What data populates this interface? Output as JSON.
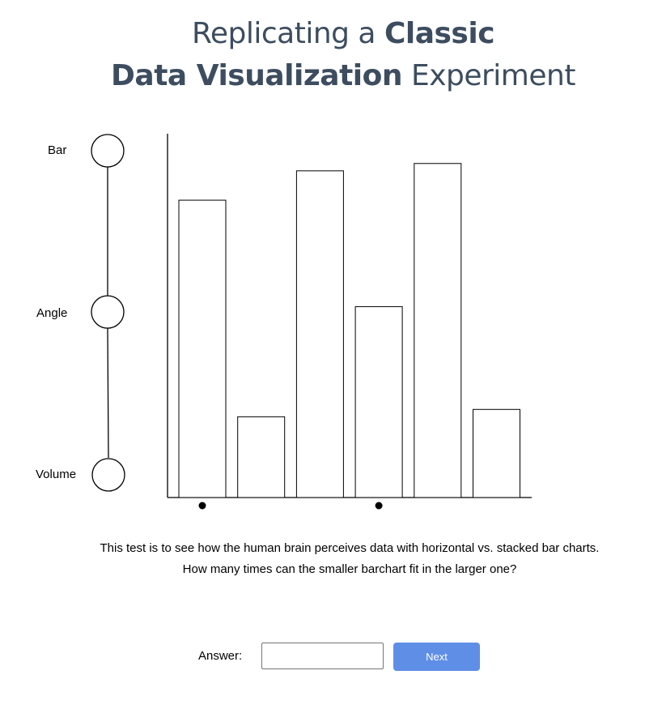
{
  "header": {
    "title_line1_normal": "Replicating a ",
    "title_line1_bold": "Classic",
    "title_line2_bold": "Data Visualization",
    "title_line2_normal": " Experiment"
  },
  "stepper": {
    "steps": [
      {
        "label": "Bar"
      },
      {
        "label": "Angle"
      },
      {
        "label": "Volume"
      }
    ]
  },
  "chart_data": {
    "type": "bar",
    "title": "",
    "xlabel": "",
    "ylabel": "",
    "values": [
      81,
      22,
      89,
      52,
      91,
      24
    ],
    "ylim": [
      0,
      100
    ],
    "marked_bar_indices": [
      0,
      3
    ],
    "bar_fill": "#ffffff",
    "bar_stroke": "#000000"
  },
  "question": {
    "line1": "This test is to see how the human brain perceives data with horizontal vs. stacked bar charts.",
    "line2": "How many times can the smaller barchart fit in the larger one?"
  },
  "answer": {
    "label": "Answer:",
    "value": "",
    "placeholder": ""
  },
  "buttons": {
    "next_label": "Next"
  },
  "colors": {
    "title": "#3d4d5f",
    "accent_button": "#5f8ee6"
  }
}
